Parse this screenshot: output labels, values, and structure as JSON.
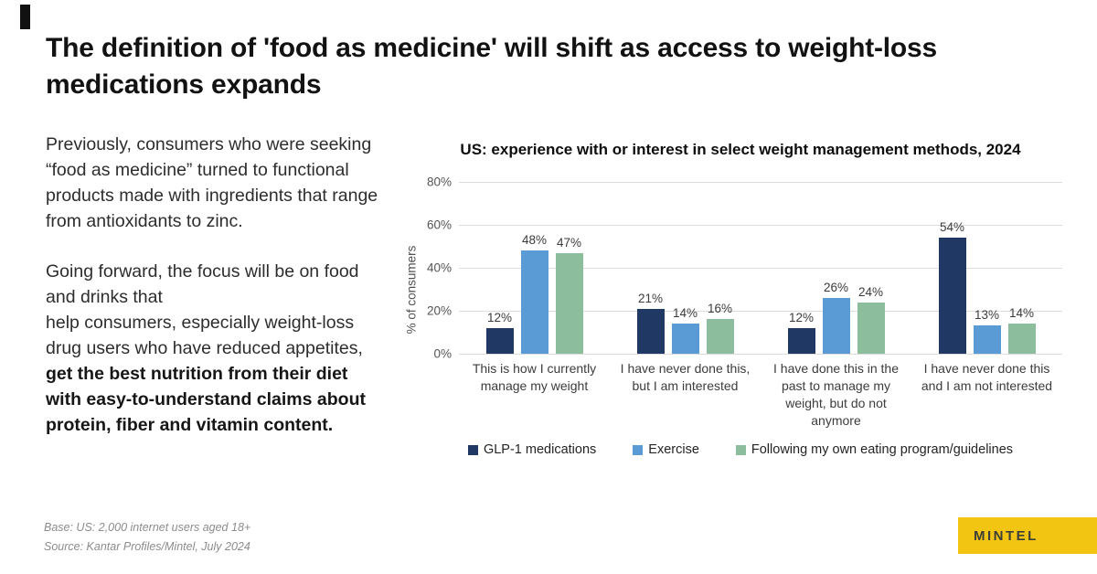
{
  "slide": {
    "title": "The definition of 'food as medicine' will shift as access to weight-loss medications expands",
    "paragraph1": "Previously, consumers who were seeking “food as medicine” turned to functional products made with ingredients that range from antioxidants to zinc.",
    "paragraph2_regular": "Going forward, the focus will be on food and drinks that\nhelp consumers, especially weight-loss drug users who have reduced appetites, ",
    "paragraph2_bold": "get the best nutrition from their diet with easy-to-understand claims about protein, fiber and vitamin content.",
    "footnote_base": "Base: US: 2,000 internet users aged 18+",
    "footnote_source": "Source: Kantar Profiles/Mintel, July 2024",
    "logo_text": "MINTEL"
  },
  "colors": {
    "logo_background": "#F2C512",
    "gridline": "#DCDCDC",
    "title_text": "#121212",
    "body_text": "#2D2D2D",
    "footnote_text": "#8C8C8C"
  },
  "chart_data": {
    "type": "bar",
    "title": "US: experience with or interest in select weight management methods, 2024",
    "xlabel": "",
    "ylabel": "% of consumers",
    "ylim": [
      0,
      80
    ],
    "yticks": [
      "0%",
      "20%",
      "40%",
      "60%",
      "80%"
    ],
    "grid": true,
    "legend_position": "bottom",
    "value_label_suffix": "%",
    "categories": [
      "This is how I currently manage my weight",
      "I have never done this, but I am interested",
      "I have done this in the past to manage my weight, but do not anymore",
      "I have never done this and I am not interested"
    ],
    "series": [
      {
        "name": "GLP-1 medications",
        "color": "#1F3864",
        "values": [
          12,
          21,
          12,
          54
        ]
      },
      {
        "name": "Exercise",
        "color": "#5B9BD5",
        "values": [
          48,
          14,
          26,
          13
        ]
      },
      {
        "name": "Following my own eating program/guidelines",
        "color": "#8CBE9D",
        "values": [
          47,
          16,
          24,
          14
        ]
      }
    ]
  }
}
